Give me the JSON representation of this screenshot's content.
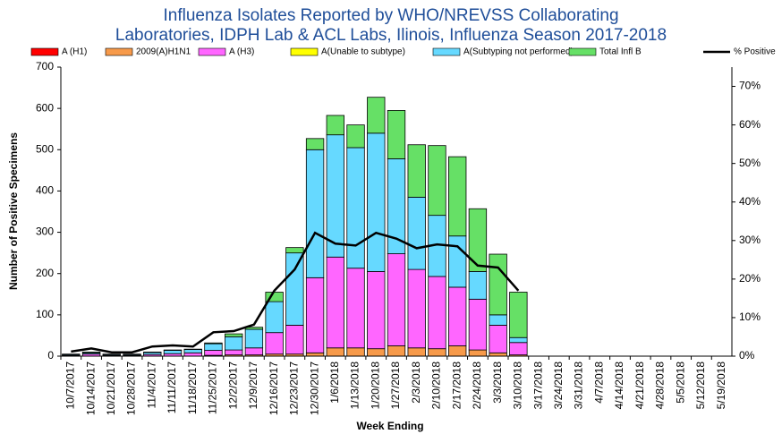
{
  "chart_data": {
    "type": "bar",
    "stacked": true,
    "title_lines": [
      "Influenza  Isolates Reported by WHO/NREVSS Collaborating",
      "Laboratories, IDPH Lab & ACL Labs, Ilinois, Influenza Season 2017-2018"
    ],
    "x_label": "Week Ending",
    "y_label": "Number of  Positive Specimens",
    "categories": [
      "10/7/2017",
      "10/14/2017",
      "10/21/2017",
      "10/28/2017",
      "11/4/2017",
      "11/11/2017",
      "11/18/2017",
      "11/25/2017",
      "12/2/2017",
      "12/9/2017",
      "12/16/2017",
      "12/23/2017",
      "12/30/2017",
      "1/6/2018",
      "1/13/2018",
      "1/20/2018",
      "1/27/2018",
      "2/3/2018",
      "2/10/2018",
      "2/17/2018",
      "2/24/2018",
      "3/3/2018",
      "3/10/2018",
      "3/17/2018",
      "3/24/2018",
      "3/31/2018",
      "4/7/2018",
      "4/14/2018",
      "4/21/2018",
      "4/28/2018",
      "5/5/2018",
      "5/12/2018",
      "5/19/2018"
    ],
    "series": [
      {
        "name": "A (H1)",
        "color": "#ff0000",
        "values": [
          0,
          0,
          0,
          0,
          0,
          0,
          0,
          0,
          0,
          0,
          0,
          0,
          0,
          0,
          0,
          0,
          0,
          0,
          0,
          0,
          0,
          0,
          0,
          null,
          null,
          null,
          null,
          null,
          null,
          null,
          null,
          null,
          null
        ]
      },
      {
        "name": "2009(A)H1N1",
        "color": "#f79a4a",
        "values": [
          0,
          0,
          0,
          0,
          0,
          0,
          0,
          2,
          3,
          3,
          5,
          5,
          8,
          20,
          20,
          18,
          25,
          20,
          18,
          25,
          15,
          8,
          3,
          null,
          null,
          null,
          null,
          null,
          null,
          null,
          null,
          null,
          null
        ]
      },
      {
        "name": "A (H3)",
        "color": "#ff66ff",
        "values": [
          2,
          5,
          2,
          2,
          4,
          6,
          8,
          12,
          12,
          17,
          52,
          70,
          182,
          220,
          193,
          187,
          223,
          190,
          175,
          142,
          123,
          67,
          30,
          null,
          null,
          null,
          null,
          null,
          null,
          null,
          null,
          null,
          null
        ]
      },
      {
        "name": "A(Unable to subtype)",
        "color": "#ffff00",
        "values": [
          0,
          0,
          0,
          0,
          0,
          0,
          0,
          0,
          0,
          0,
          0,
          0,
          0,
          0,
          0,
          0,
          0,
          0,
          0,
          0,
          0,
          0,
          0,
          null,
          null,
          null,
          null,
          null,
          null,
          null,
          null,
          null,
          null
        ]
      },
      {
        "name": "A(Subtyping not performed)",
        "color": "#66d9ff",
        "values": [
          2,
          3,
          2,
          2,
          5,
          8,
          8,
          16,
          32,
          45,
          75,
          175,
          310,
          296,
          292,
          335,
          230,
          175,
          148,
          124,
          67,
          25,
          12,
          null,
          null,
          null,
          null,
          null,
          null,
          null,
          null,
          null,
          null
        ]
      },
      {
        "name": "Total Infl B",
        "color": "#66e066",
        "values": [
          1,
          2,
          1,
          1,
          1,
          1,
          1,
          2,
          7,
          5,
          23,
          13,
          27,
          47,
          55,
          87,
          117,
          127,
          169,
          192,
          152,
          147,
          110,
          null,
          null,
          null,
          null,
          null,
          null,
          null,
          null,
          null,
          null
        ]
      },
      {
        "name": "% Positive",
        "type": "line",
        "axis": "y2",
        "color": "#000000",
        "values": [
          1.2,
          2,
          1,
          1,
          2.5,
          2.8,
          2.5,
          6.2,
          6.5,
          8.2,
          17,
          22.5,
          32,
          29.2,
          28.7,
          32,
          30.5,
          28,
          29,
          28.5,
          23.5,
          23,
          17,
          null,
          null,
          null,
          null,
          null,
          null,
          null,
          null,
          null,
          null
        ]
      }
    ],
    "ylim": [
      0,
      700
    ],
    "yticks": [
      0,
      100,
      200,
      300,
      400,
      500,
      600,
      700
    ],
    "y2lim": [
      0,
      75
    ],
    "y2ticks": [
      {
        "value": 0,
        "label": "0%"
      },
      {
        "value": 10,
        "label": "10%"
      },
      {
        "value": 20,
        "label": "20%"
      },
      {
        "value": 30,
        "label": "30%"
      },
      {
        "value": 40,
        "label": "40%"
      },
      {
        "value": 50,
        "label": "50%"
      },
      {
        "value": 60,
        "label": "60%"
      },
      {
        "value": 70,
        "label": "70%"
      }
    ],
    "grid": false
  }
}
